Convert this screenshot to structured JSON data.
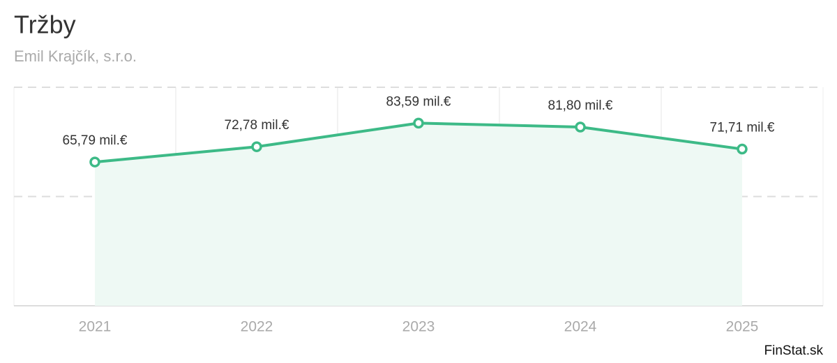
{
  "chart_data": {
    "type": "area",
    "title": "Tržby",
    "subtitle": "Emil Krajčík, s.r.o.",
    "credit": "FinStat.sk",
    "categories": [
      "2021",
      "2022",
      "2023",
      "2024",
      "2025"
    ],
    "values": [
      65.79,
      72.78,
      83.59,
      81.8,
      71.71
    ],
    "value_labels": [
      "65,79 mil.€",
      "72,78 mil.€",
      "83,59 mil.€",
      "81,80 mil.€",
      "71,71 mil.€"
    ],
    "color": "#3dba87",
    "fill_color": "#eef9f4",
    "ylim": [
      0,
      100
    ],
    "yticks": [
      50,
      100
    ],
    "grid": true
  }
}
